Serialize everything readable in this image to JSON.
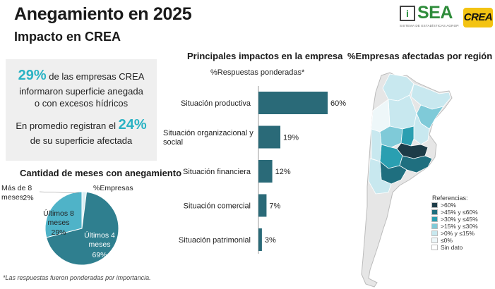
{
  "header": {
    "title": "Anegamiento en 2025",
    "subtitle": "Impacto en CREA"
  },
  "logos": {
    "sea": "SEA",
    "sea_tagline": "SISTEMA DE ESTADÍSTICAS AGROPECUARIAS",
    "crea": "CREA"
  },
  "summary": {
    "pct1": "29%",
    "line1_rest": " de las empresas CREA",
    "line2": "informaron superficie anegada",
    "line3": "o con excesos hídricos",
    "line4_pre": "En promedio registran el ",
    "pct2": "24%",
    "line5": "de su superficie afectada"
  },
  "chart_data": [
    {
      "type": "pie",
      "title": "Cantidad de meses con anegamiento",
      "subtitle": "%Empresas",
      "slices": [
        {
          "label": "Últimos 4 meses",
          "value": 69,
          "value_label": "69%",
          "color": "#2f7f8f"
        },
        {
          "label": "Últimos 8 meses",
          "value": 29,
          "value_label": "29%",
          "color": "#4fb3c8"
        },
        {
          "label": "Más de 8 meses",
          "value": 2,
          "value_label": "2%",
          "color": "#d8eef3"
        }
      ]
    },
    {
      "type": "bar",
      "orientation": "horizontal",
      "title": "Principales impactos en la empresa",
      "subtitle": "%Respuestas ponderadas*",
      "categories": [
        "Situación productiva",
        "Situación organizacional y social",
        "Situación financiera",
        "Situación comercial",
        "Situación patrimonial"
      ],
      "values": [
        60,
        19,
        12,
        7,
        3
      ],
      "value_labels": [
        "60%",
        "19%",
        "12%",
        "7%",
        "3%"
      ],
      "xlim": [
        0,
        60
      ],
      "color": "#2a6a78"
    },
    {
      "type": "map",
      "title": "%Empresas afectadas por región",
      "legend_title": "Referencias:",
      "legend": [
        {
          "label": ">60%",
          "color": "#1d3c48"
        },
        {
          "label": ">45% y ≤60%",
          "color": "#1f6f7f"
        },
        {
          "label": ">30% y ≤45%",
          "color": "#2a9fb1"
        },
        {
          "label": ">15% y ≤30%",
          "color": "#7fcad8"
        },
        {
          "label": ">0% y ≤15%",
          "color": "#c8e8ef"
        },
        {
          "label": "≤0%",
          "color": "#eef7f9"
        },
        {
          "label": "Sin dato",
          "color": "#ffffff"
        }
      ]
    }
  ],
  "footnote": "*Las respuestas fueron ponderadas por importancia."
}
